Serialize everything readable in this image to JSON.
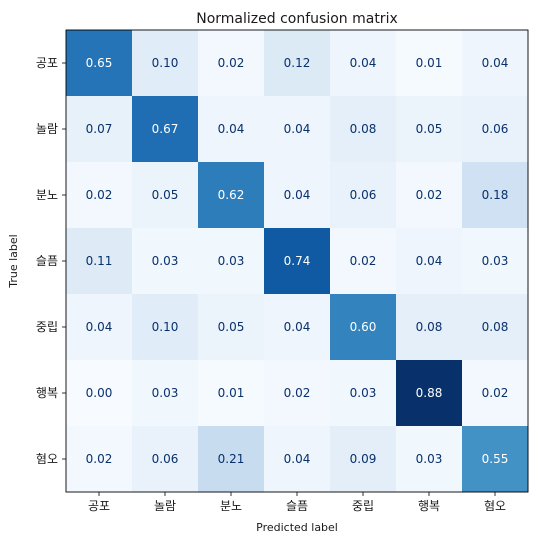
{
  "chart_data": {
    "type": "heatmap",
    "title": "Normalized confusion matrix",
    "xlabel": "Predicted label",
    "ylabel": "True label",
    "x_categories": [
      "공포",
      "놀람",
      "분노",
      "슬픔",
      "중립",
      "행복",
      "혐오"
    ],
    "y_categories": [
      "공포",
      "놀람",
      "분노",
      "슬픔",
      "중립",
      "행복",
      "혐오"
    ],
    "values": [
      [
        0.65,
        0.1,
        0.02,
        0.12,
        0.04,
        0.01,
        0.04
      ],
      [
        0.07,
        0.67,
        0.04,
        0.04,
        0.08,
        0.05,
        0.06
      ],
      [
        0.02,
        0.05,
        0.62,
        0.04,
        0.06,
        0.02,
        0.18
      ],
      [
        0.11,
        0.03,
        0.03,
        0.74,
        0.02,
        0.04,
        0.03
      ],
      [
        0.04,
        0.1,
        0.05,
        0.04,
        0.6,
        0.08,
        0.08
      ],
      [
        0.0,
        0.03,
        0.01,
        0.02,
        0.03,
        0.88,
        0.02
      ],
      [
        0.02,
        0.06,
        0.21,
        0.04,
        0.09,
        0.03,
        0.55
      ]
    ],
    "value_format": "0.00",
    "colormap": "Blues",
    "grid": false
  }
}
